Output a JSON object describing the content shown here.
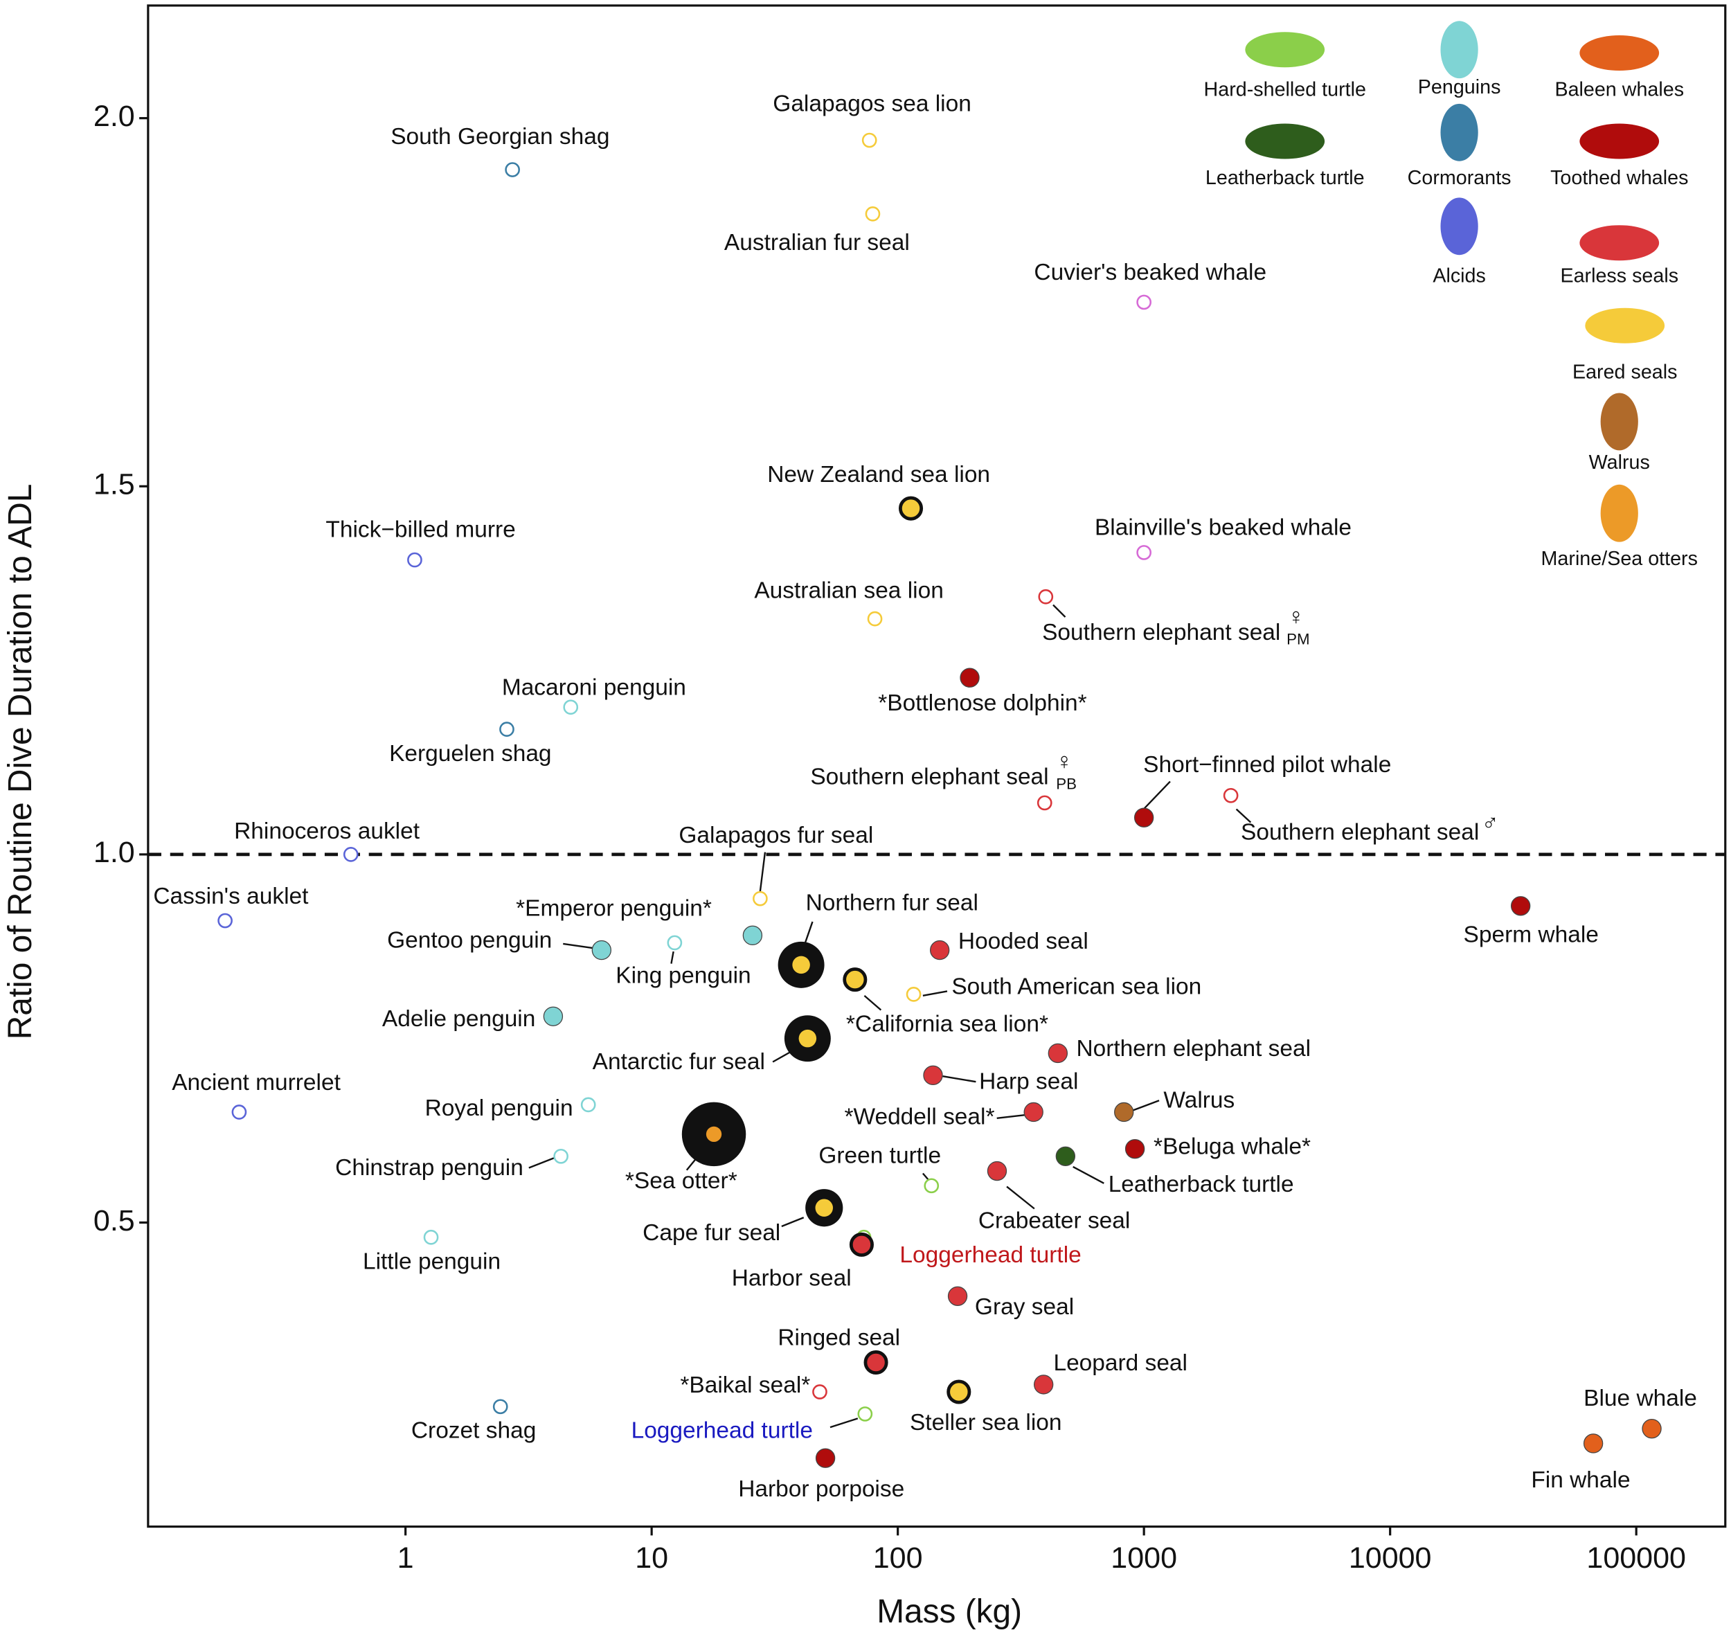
{
  "chart_data": {
    "type": "scatter",
    "xlabel": "Mass (kg)",
    "ylabel": "Ratio of Routine Dive Duration to ADL",
    "log_x": true,
    "xlim": [
      0.09,
      230000
    ],
    "ylim": [
      0.087,
      2.153
    ],
    "xticks": [
      1,
      10,
      100,
      1000,
      10000,
      100000
    ],
    "yticks": [
      0.5,
      {
        "value": 1,
        "label": "1.0"
      },
      1.5,
      {
        "value": 2,
        "label": "2.0"
      }
    ],
    "hline": 1,
    "series": [
      {
        "name": "Hard-shelled turtle",
        "color": "#8bcf4a",
        "x": [
          137,
          72.8,
          73.6
        ],
        "values": [
          0.55,
          0.48,
          0.24
        ],
        "labels": [
          "Green turtle",
          "Loggerhead turtle",
          "Loggerhead turtle"
        ],
        "markers": [
          "open",
          "open",
          "open"
        ],
        "label_colors": [
          "#111111",
          "#c0181b",
          "#1a1ac0"
        ]
      },
      {
        "name": "Penguins",
        "color": "#7fd4d4",
        "x": [
          4.69,
          6.26,
          12.4,
          25.7,
          3.98,
          5.53,
          4.28,
          1.27
        ],
        "values": [
          1.2,
          0.87,
          0.88,
          0.89,
          0.78,
          0.66,
          0.59,
          0.48
        ],
        "labels": [
          "Macaroni penguin",
          "Gentoo penguin",
          "King penguin",
          "*Emperor penguin*",
          "Adelie penguin",
          "Royal penguin",
          "Chinstrap penguin",
          "Little penguin"
        ],
        "markers": [
          "open",
          "filled",
          "open",
          "filled",
          "filled",
          "open",
          "open",
          "open"
        ]
      },
      {
        "name": "Baleen whales",
        "color": "#e2601c",
        "x": [
          115600,
          66900
        ],
        "values": [
          0.22,
          0.2
        ],
        "labels": [
          "Blue whale",
          "Fin whale"
        ],
        "markers": [
          "filled",
          "filled"
        ]
      },
      {
        "name": "Leatherback turtle",
        "color": "#2e5d1c",
        "x": [
          480
        ],
        "values": [
          0.59
        ],
        "labels": [
          "Leatherback turtle"
        ],
        "markers": [
          "filled"
        ]
      },
      {
        "name": "Cormorants",
        "color": "#3b7ea5",
        "x": [
          2.72,
          2.58,
          2.43
        ],
        "values": [
          1.93,
          1.17,
          0.25
        ],
        "labels": [
          "South Georgian shag",
          "Kerguelen shag",
          "Crozet shag"
        ],
        "markers": [
          "open",
          "open",
          "open"
        ]
      },
      {
        "name": "Toothed whales",
        "color": "#b00c0c",
        "x": [
          196,
          1000,
          33900,
          919,
          50.8
        ],
        "values": [
          1.24,
          1.05,
          0.93,
          0.6,
          0.18
        ],
        "labels": [
          "*Bottlenose dolphin*",
          "Short−finned pilot whale",
          "Sperm whale",
          "*Beluga whale*",
          "Harbor porpoise"
        ],
        "markers": [
          "filled",
          "filled",
          "filled",
          "filled",
          "filled"
        ]
      },
      {
        "name": "Alcids",
        "color": "#5a64d8",
        "x": [
          1.09,
          0.6,
          0.185,
          0.211
        ],
        "values": [
          1.4,
          1.0,
          0.91,
          0.65
        ],
        "labels": [
          "Thick−billed murre",
          "Rhinoceros auklet",
          "Cassin's auklet",
          "Ancient murrelet"
        ],
        "markers": [
          "open",
          "open",
          "open",
          "open"
        ]
      },
      {
        "name": "Earless seals",
        "color": "#d9363a",
        "x": [
          399,
          395,
          2254,
          148,
          447,
          139,
          356,
          253,
          71.3,
          175,
          81.5,
          48.2,
          391
        ],
        "values": [
          1.35,
          1.07,
          1.08,
          0.87,
          0.73,
          0.7,
          0.65,
          0.57,
          0.47,
          0.4,
          0.31,
          0.27,
          0.28
        ],
        "labels": [
          "Southern elephant seal",
          "Southern elephant seal",
          "Southern elephant seal",
          "Hooded seal",
          "Northern elephant seal",
          "Harp seal",
          "*Weddell seal*",
          "Crabeater seal",
          "Harbor seal",
          "Gray seal",
          "Ringed seal",
          "*Baikal seal*",
          "Leopard seal"
        ],
        "markers": [
          "open",
          "open",
          "open",
          "filled",
          "filled",
          "filled",
          "filled",
          "filled",
          "bold",
          "filled",
          "bold",
          "open",
          "filled"
        ],
        "sex": [
          "♀",
          "♀",
          "♂",
          null,
          null,
          null,
          null,
          null,
          null,
          null,
          null,
          null,
          null
        ],
        "sex_subscripts": [
          "PM",
          "PB",
          null,
          null,
          null,
          null,
          null,
          null,
          null,
          null,
          null,
          null,
          null
        ]
      },
      {
        "name": "Eared seals",
        "color": "#f5cb3a",
        "x": [
          76.7,
          79.1,
          113,
          80.7,
          27.6,
          40.5,
          116,
          67,
          43,
          50.2,
          177
        ],
        "values": [
          1.97,
          1.87,
          1.47,
          1.32,
          0.94,
          0.85,
          0.81,
          0.83,
          0.75,
          0.52,
          0.27
        ],
        "labels": [
          "Galapagos sea lion",
          "Australian fur seal",
          "New Zealand sea lion",
          "Australian sea lion",
          "Galapagos fur seal",
          "Northern fur seal",
          "South American sea lion",
          "*California sea lion*",
          "Antarctic fur seal",
          "Cape fur seal",
          "Steller sea lion"
        ],
        "markers": [
          "open",
          "open",
          "bold",
          "open",
          "open",
          "ringed-large",
          "open",
          "bold",
          "ringed-large",
          "ringed",
          "bold"
        ]
      },
      {
        "name": "Walrus",
        "color": "#b06a2a",
        "x": [
          829
        ],
        "values": [
          0.65
        ],
        "labels": [
          "Walrus"
        ],
        "markers": [
          "filled"
        ]
      },
      {
        "name": "Marine/Sea otters",
        "color": "#ec9a28",
        "x": [
          17.9
        ],
        "values": [
          0.62
        ],
        "labels": [
          "*Sea otter*"
        ],
        "markers": [
          "ringed-xl"
        ]
      },
      {
        "color": "#d66ad6",
        "x": [
          1000,
          1000
        ],
        "values": [
          1.75,
          1.41
        ],
        "labels": [
          "Cuvier's beaked whale",
          "Blainville's beaked whale"
        ],
        "markers": [
          "open",
          "open"
        ]
      }
    ]
  }
}
